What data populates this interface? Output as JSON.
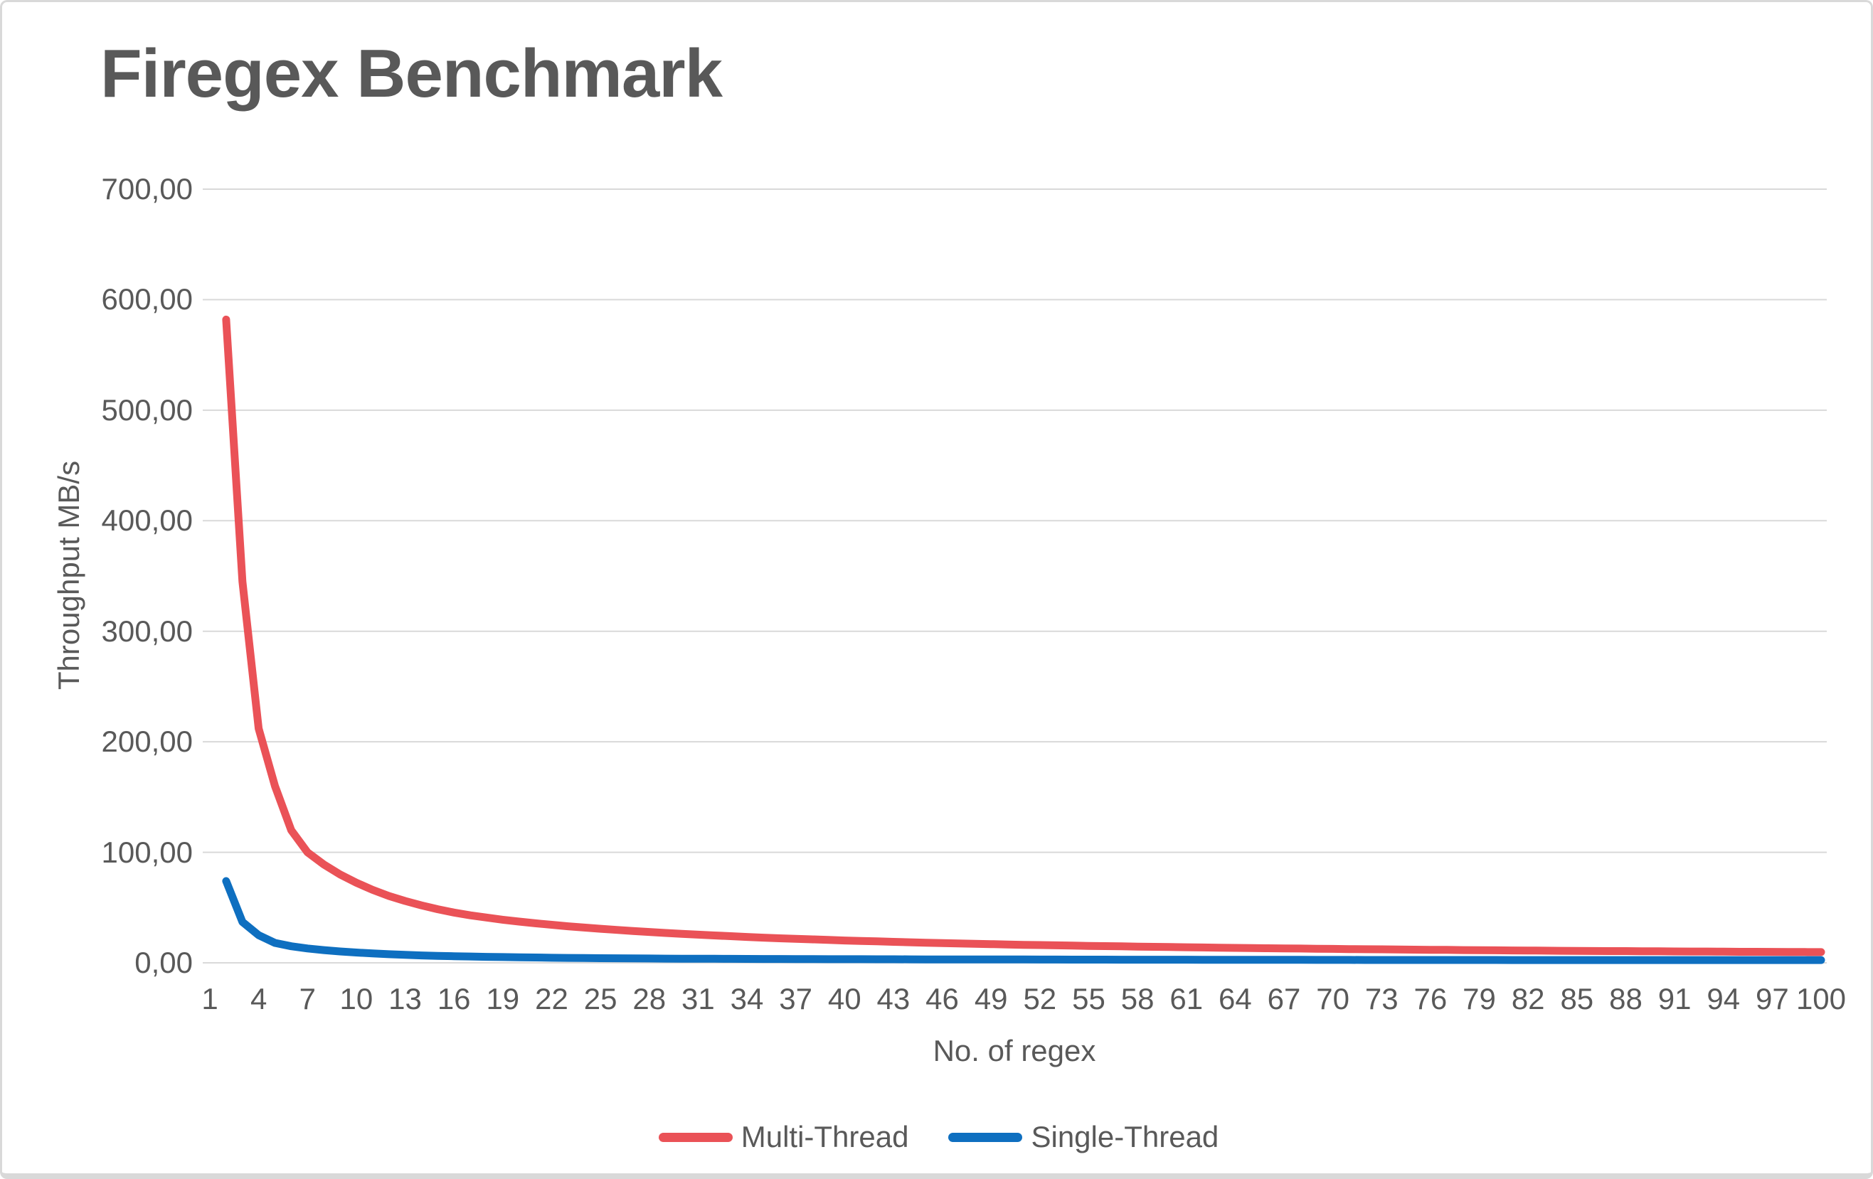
{
  "page": {
    "background": "#ffffff",
    "border_color": "#d9d9d9"
  },
  "colors": {
    "text": "#595959",
    "gridline": "#d9d9d9"
  },
  "chart_data": {
    "type": "line",
    "title": "Firegex Benchmark",
    "xlabel": "No. of regex",
    "ylabel": "Throughput MB/s",
    "ylim": [
      0,
      700
    ],
    "y_tick_step": 100,
    "grid": "horizontal",
    "legend_position": "bottom",
    "y_ticks": [
      {
        "value": 700,
        "label": "700,00"
      },
      {
        "value": 600,
        "label": "600,00"
      },
      {
        "value": 500,
        "label": "500,00"
      },
      {
        "value": 400,
        "label": "400,00"
      },
      {
        "value": 300,
        "label": "300,00"
      },
      {
        "value": 200,
        "label": "200,00"
      },
      {
        "value": 100,
        "label": "100,00"
      },
      {
        "value": 0,
        "label": "0,00"
      }
    ],
    "x_ticks": [
      1,
      4,
      7,
      10,
      13,
      16,
      19,
      22,
      25,
      28,
      31,
      34,
      37,
      40,
      43,
      46,
      49,
      52,
      55,
      58,
      61,
      64,
      67,
      70,
      73,
      76,
      79,
      82,
      85,
      88,
      91,
      94,
      97,
      100
    ],
    "x": [
      2,
      3,
      4,
      5,
      6,
      7,
      8,
      9,
      10,
      11,
      12,
      13,
      14,
      15,
      16,
      17,
      18,
      19,
      20,
      21,
      22,
      23,
      24,
      25,
      26,
      27,
      28,
      29,
      30,
      31,
      32,
      33,
      34,
      35,
      36,
      37,
      38,
      39,
      40,
      41,
      42,
      43,
      44,
      45,
      46,
      47,
      48,
      49,
      50,
      51,
      52,
      53,
      54,
      55,
      56,
      57,
      58,
      59,
      60,
      61,
      62,
      63,
      64,
      65,
      66,
      67,
      68,
      69,
      70,
      71,
      72,
      73,
      74,
      75,
      76,
      77,
      78,
      79,
      80,
      81,
      82,
      83,
      84,
      85,
      86,
      87,
      88,
      89,
      90,
      91,
      92,
      93,
      94,
      95,
      96,
      97,
      98,
      99,
      100
    ],
    "series": [
      {
        "name": "Multi-Thread",
        "color": "#EA5257",
        "values": [
          582,
          345,
          212,
          160,
          120,
          100,
          89,
          80,
          72.5,
          66,
          60.5,
          56,
          52,
          48.5,
          45.5,
          43,
          41,
          39,
          37.3,
          35.8,
          34.4,
          33.1,
          31.9,
          30.8,
          29.8,
          28.8,
          27.9,
          27,
          26.2,
          25.5,
          24.8,
          24.1,
          23.4,
          22.8,
          22.2,
          21.7,
          21.2,
          20.7,
          20.2,
          19.8,
          19.4,
          19,
          18.6,
          18.2,
          17.9,
          17.5,
          17.2,
          16.9,
          16.6,
          16.3,
          16.1,
          15.8,
          15.6,
          15.3,
          15.1,
          14.9,
          14.7,
          14.5,
          14.3,
          14.1,
          13.9,
          13.7,
          13.5,
          13.4,
          13.2,
          13,
          12.9,
          12.7,
          12.6,
          12.4,
          12.3,
          12.2,
          12,
          11.9,
          11.8,
          11.7,
          11.5,
          11.4,
          11.3,
          11.2,
          11.1,
          11,
          10.9,
          10.8,
          10.7,
          10.6,
          10.6,
          10.5,
          10.4,
          10.3,
          10.2,
          10.2,
          10.1,
          10,
          10,
          9.9,
          9.8,
          9.8,
          9.7
        ]
      },
      {
        "name": "Single-Thread",
        "color": "#0E6FC0",
        "values": [
          74,
          37,
          25,
          18,
          15,
          13,
          11.5,
          10.3,
          9.3,
          8.5,
          7.8,
          7.2,
          6.7,
          6.3,
          6,
          5.7,
          5.4,
          5.2,
          5,
          4.8,
          4.6,
          4.45,
          4.3,
          4.2,
          4.1,
          4,
          3.9,
          3.8,
          3.75,
          3.7,
          3.65,
          3.6,
          3.55,
          3.5,
          3.45,
          3.4,
          3.35,
          3.3,
          3.3,
          3.25,
          3.2,
          3.2,
          3.15,
          3.1,
          3.1,
          3.05,
          3.05,
          3,
          3,
          3,
          2.95,
          2.95,
          2.9,
          2.9,
          2.9,
          2.85,
          2.85,
          2.8,
          2.8,
          2.8,
          2.75,
          2.75,
          2.75,
          2.7,
          2.7,
          2.7,
          2.7,
          2.65,
          2.65,
          2.65,
          2.6,
          2.6,
          2.6,
          2.6,
          2.6,
          2.55,
          2.55,
          2.55,
          2.55,
          2.5,
          2.5,
          2.5,
          2.5,
          2.5,
          2.5,
          2.5,
          2.5,
          2.5,
          2.5,
          2.5,
          2.5,
          2.5,
          2.5,
          2.5,
          2.5,
          2.5,
          2.5,
          2.5,
          2.5
        ]
      }
    ]
  },
  "legend": {
    "items": [
      {
        "label": "Multi-Thread"
      },
      {
        "label": "Single-Thread"
      }
    ]
  }
}
